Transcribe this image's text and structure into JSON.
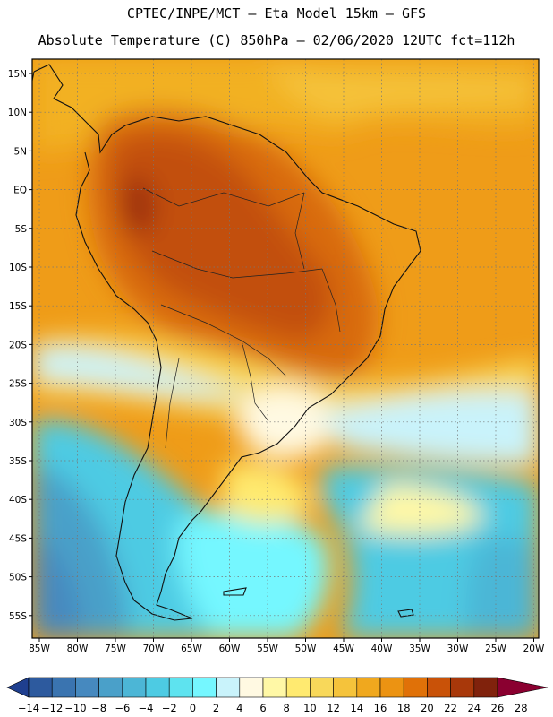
{
  "header": {
    "line1": "CPTEC/INPE/MCT –  Eta Model 15km – GFS",
    "line2": "Absolute Temperature (C) 850hPa – 02/06/2020 12UTC fct=112h"
  },
  "map": {
    "lat_labels": [
      "15N",
      "10N",
      "5N",
      "EQ",
      "5S",
      "10S",
      "15S",
      "20S",
      "25S",
      "30S",
      "35S",
      "40S",
      "45S",
      "50S",
      "55S"
    ],
    "lon_labels": [
      "85W",
      "80W",
      "75W",
      "70W",
      "65W",
      "60W",
      "55W",
      "50W",
      "45W",
      "40W",
      "35W",
      "30W",
      "25W",
      "20W"
    ]
  },
  "colorbar": {
    "labels": [
      "-14",
      "-12",
      "-10",
      "-8",
      "-6",
      "-4",
      "-2",
      "0",
      "2",
      "4",
      "6",
      "8",
      "10",
      "12",
      "14",
      "16",
      "18",
      "20",
      "22",
      "24",
      "26",
      "28"
    ],
    "colors": [
      "#1f3f8f",
      "#2d5a9e",
      "#3a74b0",
      "#4689bf",
      "#4aa0c9",
      "#4cb6d6",
      "#4dcbe3",
      "#5ee3ef",
      "#75f7ff",
      "#c9f3fb",
      "#fff9e2",
      "#fff8a6",
      "#ffea70",
      "#f8d85a",
      "#f5c33b",
      "#f0a81e",
      "#ec9312",
      "#e07108",
      "#c95208",
      "#a8380a",
      "#80220c",
      "#8a0030"
    ]
  }
}
